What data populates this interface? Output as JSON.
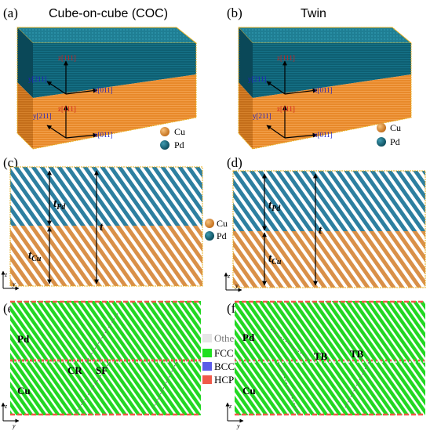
{
  "figure": {
    "panels": [
      {
        "label": "(a)",
        "title": "Cube-on-cube (COC)"
      },
      {
        "label": "(b)",
        "title": "Twin"
      },
      {
        "label": "(c)"
      },
      {
        "label": "(d)"
      },
      {
        "label": "(e)"
      },
      {
        "label": "(f)"
      }
    ],
    "axes_3d": {
      "a_top": {
        "z": "z[111]",
        "y": "y[211]",
        "x": "x[011]"
      },
      "a_bottom": {
        "z": "z[111]",
        "y": "y[211]",
        "x": "x[011]"
      },
      "b_top": {
        "z": "z[111]",
        "y": "y[211]",
        "x": "x[011]"
      },
      "b_bottom": {
        "z": "z[111]",
        "y": "y[211]",
        "x": "x[011]"
      }
    },
    "legend_species": {
      "cu": "Cu",
      "pd": "Pd",
      "cu_color": "#E38B2A",
      "pd_color": "#136E83"
    },
    "thickness_labels": {
      "t_pd": "t",
      "t_pd_sub": "Pd",
      "t_cu": "t",
      "t_cu_sub": "Cu",
      "total": "t"
    },
    "axis_2d": {
      "z": "z",
      "y": "y"
    },
    "layer_labels": {
      "pd": "Pd",
      "cu": "Cu"
    },
    "defect_labels": {
      "cr": "CR",
      "sf": "SF",
      "tb1": "TB",
      "tb2": "TB"
    },
    "structure_legend": [
      {
        "label": "Other",
        "color": "#E6E6E6"
      },
      {
        "label": "FCC",
        "color": "#1FE01F"
      },
      {
        "label": "BCC",
        "color": "#5B5BE8"
      },
      {
        "label": "HCP",
        "color": "#F05A4A"
      }
    ],
    "colors": {
      "pd_top": "#1F7E93",
      "pd_front": "#0E5F72",
      "pd_side": "#0A4858",
      "cu_front": "#E8892A",
      "cu_side": "#C46E1A",
      "stripe_blue": "#2D7FA0",
      "stripe_orange": "#D99048",
      "fcc": "#22D822",
      "hcp": "#F05A4A",
      "box_border": "#E8B020"
    }
  }
}
